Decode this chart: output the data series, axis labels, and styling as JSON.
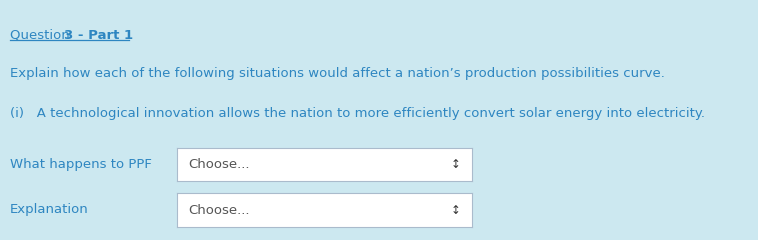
{
  "background_color": "#cce8f0",
  "title_prefix": "Question ",
  "title_bold": "3 - Part 1",
  "body_text1": "Explain how each of the following situations would affect a nation’s production possibilities curve.",
  "body_text2": "(i)   A technological innovation allows the nation to more efficiently convert solar energy into electricity.",
  "label1": "What happens to PPF",
  "label2": "Explanation",
  "dropdown_text": "Choose...",
  "text_color": "#2e86c1",
  "dropdown_border": "#aabbcc",
  "font_size": 9.5,
  "fig_width": 7.58,
  "fig_height": 2.4,
  "dpi": 100
}
